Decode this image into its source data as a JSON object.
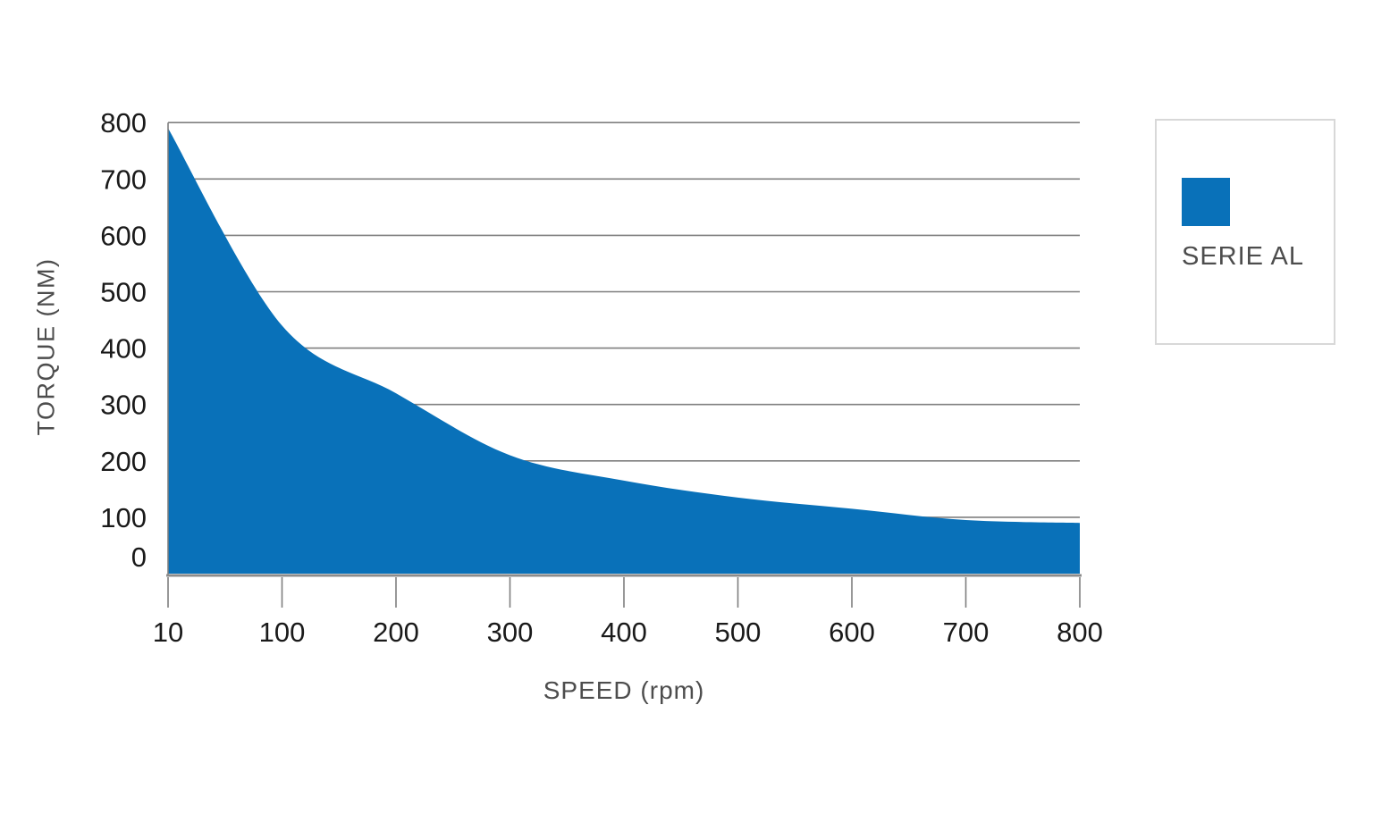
{
  "chart_data": {
    "type": "area",
    "title": "",
    "xlabel": "SPEED (rpm)",
    "ylabel": "TORQUE (NM)",
    "x_categories": [
      "10",
      "100",
      "200",
      "300",
      "400",
      "500",
      "600",
      "700",
      "800"
    ],
    "series": [
      {
        "name": "SERIE AL",
        "values": [
          790,
          440,
          320,
          210,
          165,
          135,
          115,
          95,
          90
        ]
      }
    ],
    "ylim": [
      0,
      800
    ],
    "yticks": [
      0,
      100,
      200,
      300,
      400,
      500,
      600,
      700,
      800
    ],
    "grid": "horizontal",
    "smooth_line": true,
    "legend_position": "right"
  },
  "colors": {
    "area_fill": "#0971B9",
    "gridline": "#7f7f7f",
    "axis_line": "#8c8c8c",
    "tick_label": "#1a1a1a",
    "axis_title": "#4d4d4d",
    "legend_text": "#4d4d4d",
    "legend_border": "#d8d8d8",
    "background": "#ffffff"
  }
}
